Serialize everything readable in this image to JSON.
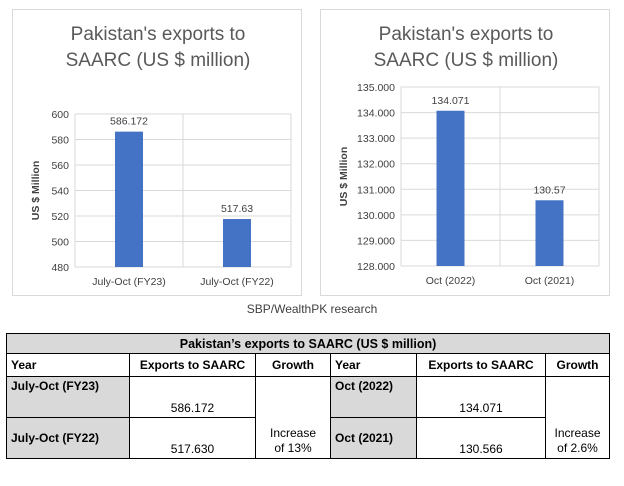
{
  "chart_data": [
    {
      "type": "bar",
      "title_lines": [
        "Pakistan's exports to",
        "SAARC (US $ million)"
      ],
      "ylabel": "US $ Million",
      "categories": [
        "July-Oct (FY23)",
        "July-Oct (FY22)"
      ],
      "values": [
        586.172,
        517.63
      ],
      "data_labels": [
        "586.172",
        "517.63"
      ],
      "yticks": [
        "480",
        "500",
        "520",
        "540",
        "560",
        "580",
        "600"
      ],
      "ylim": [
        480,
        600
      ],
      "bar_color": "#4472c4",
      "grid": true
    },
    {
      "type": "bar",
      "title_lines": [
        "Pakistan's exports to",
        "SAARC (US $ million)"
      ],
      "ylabel": "US $ Million",
      "categories": [
        "Oct (2022)",
        "Oct (2021)"
      ],
      "values": [
        134.071,
        130.57
      ],
      "data_labels": [
        "134.071",
        "130.57"
      ],
      "yticks": [
        "128.000",
        "129.000",
        "130.000",
        "131.000",
        "132.000",
        "133.000",
        "134.000",
        "135.000"
      ],
      "ylim": [
        128,
        135
      ],
      "bar_color": "#4472c4",
      "grid": true
    }
  ],
  "source_text": "SBP/WealthPK research",
  "table": {
    "title": "Pakistan’s exports to SAARC (US $ million)",
    "headers": [
      "Year",
      "Exports to SAARC",
      "Growth",
      "Year",
      "Exports to SAARC",
      "Growth"
    ],
    "left": {
      "rows": [
        {
          "period": "July-Oct (FY23)",
          "value": "586.172"
        },
        {
          "period": "July-Oct (FY22)",
          "value": "517.630"
        }
      ],
      "growth_line1": "Increase",
      "growth_line2": "of 13%"
    },
    "right": {
      "rows": [
        {
          "period": "Oct (2022)",
          "value": "134.071"
        },
        {
          "period": "Oct (2021)",
          "value": "130.566"
        }
      ],
      "growth_line1": "Increase",
      "growth_line2": "of 2.6%"
    }
  }
}
